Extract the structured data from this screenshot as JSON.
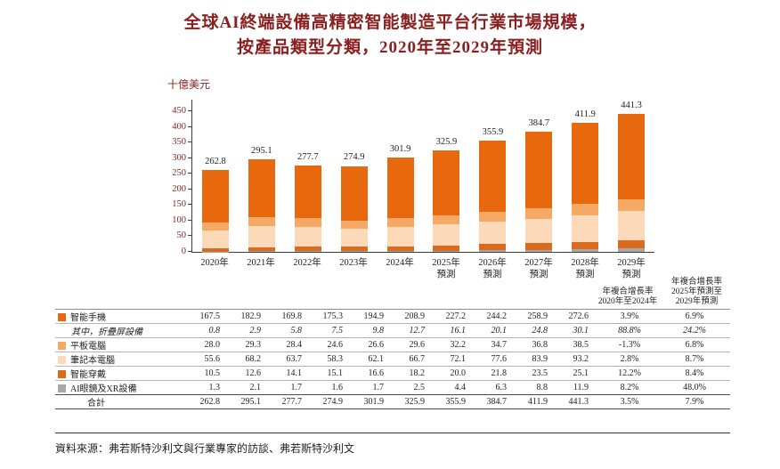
{
  "colors": {
    "heading": "#8A1F1F",
    "text": "#1f1f1f",
    "axis": "#3c3c3c"
  },
  "title": {
    "line1": "全球AI終端設備高精密智能製造平台行業市場規模，",
    "line2": "按產品類型分類，2020年至2029年預測"
  },
  "chart_data": {
    "type": "bar",
    "stacked": true,
    "unit_label": "十億美元",
    "ylim": [
      0,
      450
    ],
    "yticks": [
      0,
      50,
      100,
      150,
      200,
      250,
      300,
      350,
      400,
      450
    ],
    "categories": [
      {
        "label": "2020年",
        "sub": ""
      },
      {
        "label": "2021年",
        "sub": ""
      },
      {
        "label": "2022年",
        "sub": ""
      },
      {
        "label": "2023年",
        "sub": ""
      },
      {
        "label": "2024年",
        "sub": ""
      },
      {
        "label": "2025年",
        "sub": "預測"
      },
      {
        "label": "2026年",
        "sub": "預測"
      },
      {
        "label": "2027年",
        "sub": "預測"
      },
      {
        "label": "2028年",
        "sub": "預測"
      },
      {
        "label": "2029年",
        "sub": "預測"
      }
    ],
    "series": [
      {
        "name": "智能手機",
        "color": "#E8680D",
        "values": [
          167.5,
          182.9,
          169.8,
          175.3,
          194.9,
          208.9,
          227.2,
          244.2,
          258.9,
          272.6
        ]
      },
      {
        "name": "平板電腦",
        "color": "#F6A964",
        "values": [
          28.0,
          29.3,
          28.4,
          24.6,
          26.6,
          29.6,
          32.2,
          34.7,
          36.8,
          38.5
        ]
      },
      {
        "name": "筆記本電腦",
        "color": "#FBD9B9",
        "values": [
          55.6,
          68.2,
          63.7,
          58.3,
          62.1,
          66.7,
          72.1,
          77.6,
          83.9,
          93.2
        ]
      },
      {
        "name": "智能穿戴",
        "color": "#D96A1E",
        "values": [
          10.5,
          12.6,
          14.1,
          15.1,
          16.6,
          18.2,
          20.0,
          21.8,
          23.5,
          25.1
        ]
      },
      {
        "name": "AI眼鏡及XR設備",
        "color": "#A8A8A8",
        "values": [
          1.3,
          2.1,
          1.7,
          1.6,
          1.7,
          2.5,
          4.4,
          6.3,
          8.8,
          11.9
        ]
      }
    ],
    "stack_order_bottom_to_top": [
      "AI眼鏡及XR設備",
      "智能穿戴",
      "筆記本電腦",
      "平板電腦",
      "智能手機"
    ],
    "totals": [
      "262.8",
      "295.1",
      "277.7",
      "274.9",
      "301.9",
      "325.9",
      "355.9",
      "384.7",
      "411.9",
      "441.3"
    ],
    "legend_position": "table-left-column",
    "grid": false
  },
  "table": {
    "cagr_headers": [
      {
        "lines": [
          "年複合增長率",
          "2020年至2024年"
        ]
      },
      {
        "lines": [
          "年複合增長率",
          "2025年預測至",
          "2029年預測"
        ]
      }
    ],
    "rows": [
      {
        "label": "智能手機",
        "swatch": "#E8680D",
        "values": [
          "167.5",
          "182.9",
          "169.8",
          "175.3",
          "194.9",
          "208.9",
          "227.2",
          "244.2",
          "258.9",
          "272.6"
        ],
        "cagr1": "3.9%",
        "cagr2": "6.9%"
      },
      {
        "label": "其中，折疊屏設備",
        "italic": true,
        "indent": true,
        "values": [
          "0.8",
          "2.9",
          "5.8",
          "7.5",
          "9.8",
          "12.7",
          "16.1",
          "20.1",
          "24.8",
          "30.1"
        ],
        "cagr1": "88.8%",
        "cagr2": "24.2%"
      },
      {
        "label": "平板電腦",
        "swatch": "#F6A964",
        "values": [
          "28.0",
          "29.3",
          "28.4",
          "24.6",
          "26.6",
          "29.6",
          "32.2",
          "34.7",
          "36.8",
          "38.5"
        ],
        "cagr1": "-1.3%",
        "cagr2": "6.8%"
      },
      {
        "label": "筆記本電腦",
        "swatch": "#FBD9B9",
        "values": [
          "55.6",
          "68.2",
          "63.7",
          "58.3",
          "62.1",
          "66.7",
          "72.1",
          "77.6",
          "83.9",
          "93.2"
        ],
        "cagr1": "2.8%",
        "cagr2": "8.7%"
      },
      {
        "label": "智能穿戴",
        "swatch": "#D96A1E",
        "values": [
          "10.5",
          "12.6",
          "14.1",
          "15.1",
          "16.6",
          "18.2",
          "20.0",
          "21.8",
          "23.5",
          "25.1"
        ],
        "cagr1": "12.2%",
        "cagr2": "8.4%"
      },
      {
        "label": "AI眼鏡及XR設備",
        "swatch": "#A8A8A8",
        "values": [
          "1.3",
          "2.1",
          "1.7",
          "1.6",
          "1.7",
          "2.5",
          "4.4",
          "6.3",
          "8.8",
          "11.9"
        ],
        "cagr1": "8.2%",
        "cagr2": "48.0%"
      },
      {
        "label": "合計",
        "total": true,
        "values": [
          "262.8",
          "295.1",
          "277.7",
          "274.9",
          "301.9",
          "325.9",
          "355.9",
          "384.7",
          "411.9",
          "441.3"
        ],
        "cagr1": "3.5%",
        "cagr2": "7.9%"
      }
    ]
  },
  "source": "資料來源：弗若斯特沙利文與行業專家的訪談、弗若斯特沙利文"
}
